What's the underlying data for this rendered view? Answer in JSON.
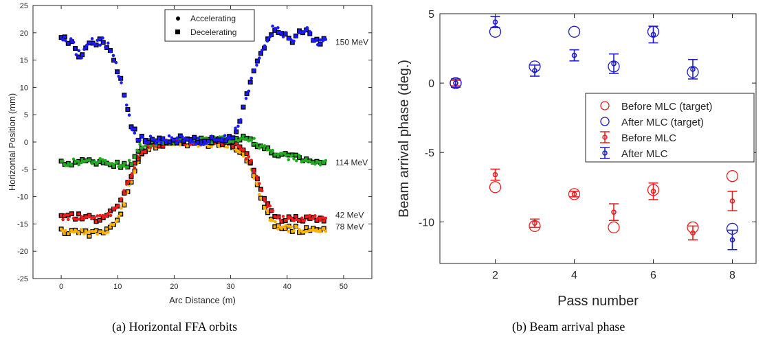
{
  "chart_data": [
    {
      "type": "scatter",
      "title": "",
      "xlabel": "Arc Distance (m)",
      "ylabel": "Horizontal Position (mm)",
      "xlim": [
        -5,
        55
      ],
      "ylim": [
        -25,
        25
      ],
      "xticks": [
        0,
        10,
        20,
        30,
        40,
        50
      ],
      "yticks": [
        -25,
        -20,
        -15,
        -10,
        -5,
        0,
        5,
        10,
        15,
        20,
        25
      ],
      "grid": false,
      "legend": {
        "placement": "top",
        "entries": [
          {
            "marker": "dot",
            "label": "Accelerating"
          },
          {
            "marker": "square",
            "label": "Decelerating"
          }
        ]
      },
      "series": [
        {
          "name": "150 MeV",
          "color": "#1a1aff",
          "profile": [
            [
              0,
              18.6
            ],
            [
              1,
              18.7
            ],
            [
              2,
              18.5
            ],
            [
              2.5,
              16.5
            ],
            [
              3.5,
              15.8
            ],
            [
              4.5,
              17.5
            ],
            [
              5.5,
              18.5
            ],
            [
              6.5,
              18.2
            ],
            [
              7.5,
              18.4
            ],
            [
              8.5,
              17.2
            ],
            [
              9.5,
              14.8
            ],
            [
              10.5,
              11.5
            ],
            [
              11.5,
              7.5
            ],
            [
              12.5,
              3.0
            ],
            [
              13.5,
              0.8
            ],
            [
              15,
              0.4
            ],
            [
              20,
              0.5
            ],
            [
              25,
              0.2
            ],
            [
              30,
              0.8
            ],
            [
              31.5,
              3.0
            ],
            [
              32.5,
              7.0
            ],
            [
              33.5,
              10.5
            ],
            [
              34.5,
              14.0
            ],
            [
              35.5,
              16.5
            ],
            [
              36.5,
              18.0
            ],
            [
              37.5,
              20.8
            ],
            [
              38.5,
              20.5
            ],
            [
              39.5,
              19.8
            ],
            [
              40.5,
              18.5
            ],
            [
              41.5,
              18.8
            ],
            [
              42.5,
              20.2
            ],
            [
              43.5,
              20.5
            ],
            [
              44.5,
              19.5
            ],
            [
              45.5,
              17.8
            ],
            [
              46.5,
              18.5
            ],
            [
              47,
              19.8
            ]
          ]
        },
        {
          "name": "114 MeV",
          "color": "#22aa22",
          "profile": [
            [
              0,
              -4.0
            ],
            [
              3,
              -3.6
            ],
            [
              6,
              -3.5
            ],
            [
              9,
              -3.8
            ],
            [
              11,
              -4.5
            ],
            [
              12.5,
              -3.5
            ],
            [
              13.5,
              -1.5
            ],
            [
              14.5,
              -0.3
            ],
            [
              20,
              0.2
            ],
            [
              25,
              0.3
            ],
            [
              30,
              0.5
            ],
            [
              33,
              0.8
            ],
            [
              35,
              -0.5
            ],
            [
              37,
              -1.8
            ],
            [
              39,
              -2.5
            ],
            [
              41,
              -2.8
            ],
            [
              43,
              -3.2
            ],
            [
              45,
              -3.5
            ],
            [
              47,
              -3.8
            ]
          ]
        },
        {
          "name": "42 MeV",
          "color": "#ee1c1c",
          "profile": [
            [
              0,
              -14.0
            ],
            [
              2,
              -13.5
            ],
            [
              4,
              -13.8
            ],
            [
              6,
              -14.0
            ],
            [
              8,
              -13.5
            ],
            [
              9.5,
              -12.5
            ],
            [
              10.5,
              -11.0
            ],
            [
              11.5,
              -8.5
            ],
            [
              12.5,
              -5.5
            ],
            [
              13.5,
              -3.0
            ],
            [
              14.5,
              -1.5
            ],
            [
              16,
              -0.5
            ],
            [
              20,
              0.0
            ],
            [
              25,
              0.0
            ],
            [
              30,
              -0.2
            ],
            [
              32,
              -1.5
            ],
            [
              33.5,
              -3.5
            ],
            [
              34.5,
              -6.0
            ],
            [
              35.5,
              -9.0
            ],
            [
              36.5,
              -11.5
            ],
            [
              37.5,
              -13.0
            ],
            [
              39,
              -14.0
            ],
            [
              42,
              -14.2
            ],
            [
              45,
              -13.8
            ],
            [
              47,
              -14.0
            ]
          ]
        },
        {
          "name": "78 MeV",
          "color": "#ffb300",
          "profile": [
            [
              0,
              -16.5
            ],
            [
              2,
              -16.2
            ],
            [
              4,
              -16.5
            ],
            [
              6,
              -16.8
            ],
            [
              8,
              -16.2
            ],
            [
              9.5,
              -15.0
            ],
            [
              10.5,
              -13.0
            ],
            [
              11.5,
              -10.0
            ],
            [
              12.5,
              -6.5
            ],
            [
              13.5,
              -3.5
            ],
            [
              14.5,
              -1.8
            ],
            [
              16,
              -0.7
            ],
            [
              20,
              -0.2
            ],
            [
              25,
              -0.2
            ],
            [
              30,
              -0.5
            ],
            [
              32,
              -2.0
            ],
            [
              33.5,
              -4.5
            ],
            [
              34.5,
              -7.5
            ],
            [
              35.5,
              -10.5
            ],
            [
              36.5,
              -13.0
            ],
            [
              37.5,
              -14.8
            ],
            [
              39,
              -15.8
            ],
            [
              42,
              -16.0
            ],
            [
              45,
              -16.2
            ],
            [
              47,
              -16.0
            ]
          ]
        }
      ]
    },
    {
      "type": "scatter",
      "title": "",
      "xlabel": "Pass number",
      "ylabel": "Beam arrival phase (deg.)",
      "xlim": [
        0.6,
        8.6
      ],
      "ylim": [
        -13,
        5
      ],
      "xticks": [
        2,
        4,
        6,
        8
      ],
      "yticks": [
        5,
        0,
        -5,
        -10
      ],
      "grid": false,
      "legend": {
        "placement": "right",
        "entries": [
          {
            "marker": "circle",
            "color": "#ee1c1c",
            "label": "Before MLC (target)"
          },
          {
            "marker": "circle",
            "color": "#1a1acc",
            "label": "After MLC (target)"
          },
          {
            "marker": "errorbar",
            "color": "#ee1c1c",
            "label": "Before MLC"
          },
          {
            "marker": "errorbar",
            "color": "#1a1acc",
            "label": "After MLC"
          }
        ]
      },
      "series": [
        {
          "name": "Before MLC (target)",
          "color": "#ee1c1c",
          "x": [
            1,
            2,
            3,
            4,
            5,
            6,
            7,
            8
          ],
          "y": [
            0.0,
            -7.5,
            -10.3,
            -8.0,
            -10.4,
            -7.7,
            -10.4,
            -6.7
          ]
        },
        {
          "name": "After MLC (target)",
          "color": "#1a1acc",
          "x": [
            1,
            2,
            3,
            4,
            5,
            6,
            7,
            8
          ],
          "y": [
            0.0,
            3.7,
            1.2,
            3.7,
            1.2,
            3.7,
            0.8,
            -10.5
          ]
        },
        {
          "name": "Before MLC",
          "color": "#ee1c1c",
          "x": [
            1,
            2,
            3,
            4,
            5,
            6,
            7,
            8
          ],
          "y": [
            0.0,
            -6.6,
            -10.1,
            -8.0,
            -9.3,
            -7.8,
            -10.8,
            -8.5
          ],
          "err": [
            0.2,
            0.4,
            0.3,
            0.2,
            0.6,
            0.6,
            0.5,
            0.7
          ]
        },
        {
          "name": "After MLC",
          "color": "#1a1acc",
          "x": [
            1,
            2,
            3,
            4,
            5,
            6,
            7,
            8
          ],
          "y": [
            0.0,
            4.4,
            0.9,
            2.0,
            1.4,
            3.5,
            1.0,
            -11.3
          ],
          "err": [
            0.3,
            0.4,
            0.4,
            0.4,
            0.7,
            0.6,
            0.7,
            0.7
          ]
        }
      ]
    }
  ],
  "captions": {
    "a": "(a)  Horizontal FFA orbits",
    "b": "(b)  Beam arrival phase"
  }
}
